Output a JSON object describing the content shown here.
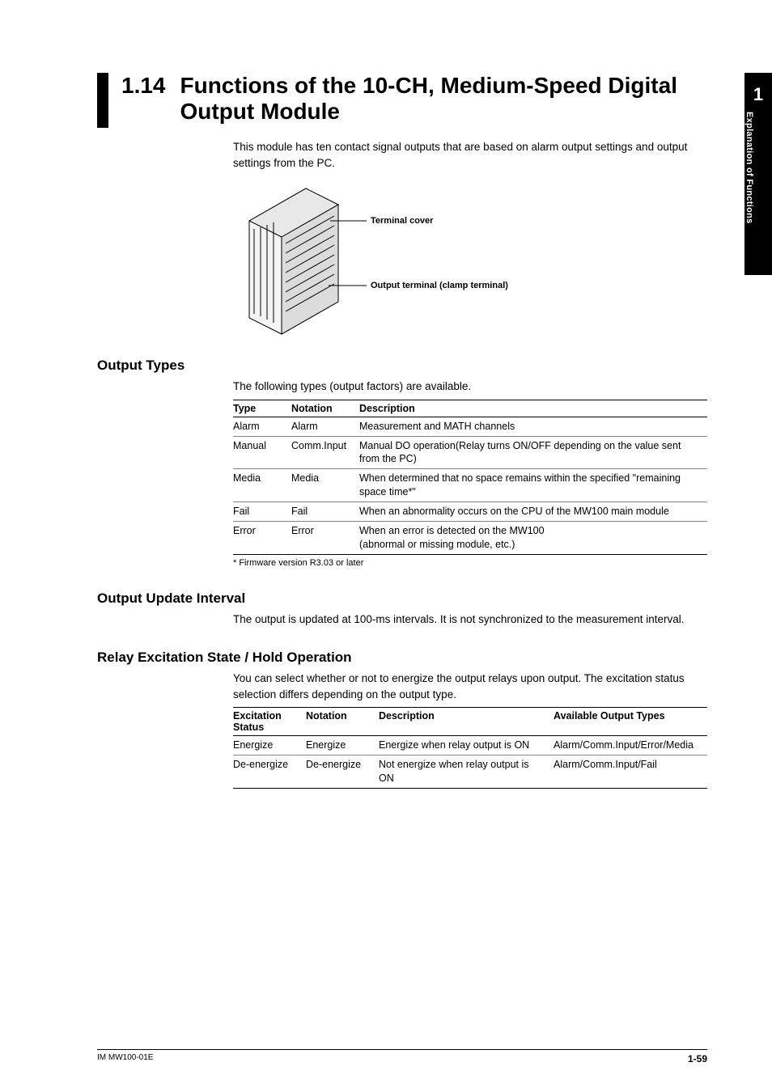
{
  "sidetab": {
    "number": "1",
    "label": "Explanation of Functions"
  },
  "section": {
    "number": "1.14",
    "title": "Functions of the 10-CH, Medium-Speed Digital Output Module",
    "intro": "This module has ten contact signal outputs that are based on alarm output settings and output settings from the PC."
  },
  "diagram": {
    "label1": "Terminal cover",
    "label2": "Output terminal (clamp terminal)"
  },
  "output_types": {
    "heading": "Output Types",
    "lead": "The following types (output factors) are available.",
    "columns": [
      "Type",
      "Notation",
      "Description"
    ],
    "rows": [
      [
        "Alarm",
        "Alarm",
        "Measurement and MATH channels"
      ],
      [
        "Manual",
        "Comm.Input",
        "Manual DO operation(Relay turns ON/OFF depending on the value sent from the PC)"
      ],
      [
        "Media",
        "Media",
        "When determined that no space remains within the specified \"remaining space time*\""
      ],
      [
        "Fail",
        "Fail",
        "When an abnormality occurs on the CPU of the MW100 main module"
      ],
      [
        "Error",
        "Error",
        "When an error is detected on the MW100\n(abnormal or missing module, etc.)"
      ]
    ],
    "footnote": "*  Firmware version R3.03 or later"
  },
  "update_interval": {
    "heading": "Output Update Interval",
    "body": "The output is updated at 100-ms intervals. It is not synchronized to the measurement interval."
  },
  "relay": {
    "heading": "Relay Excitation State / Hold Operation",
    "lead": "You can select whether or not to energize the output relays upon output. The excitation status selection differs depending on the output type.",
    "columns": [
      "Excitation Status",
      "Notation",
      "Description",
      "Available Output Types"
    ],
    "rows": [
      [
        "Energize",
        "Energize",
        "Energize when relay output is ON",
        "Alarm/Comm.Input/Error/Media"
      ],
      [
        "De-energize",
        "De-energize",
        "Not energize when relay output is ON",
        "Alarm/Comm.Input/Fail"
      ]
    ]
  },
  "footer": {
    "left": "IM MW100-01E",
    "right": "1-59"
  }
}
